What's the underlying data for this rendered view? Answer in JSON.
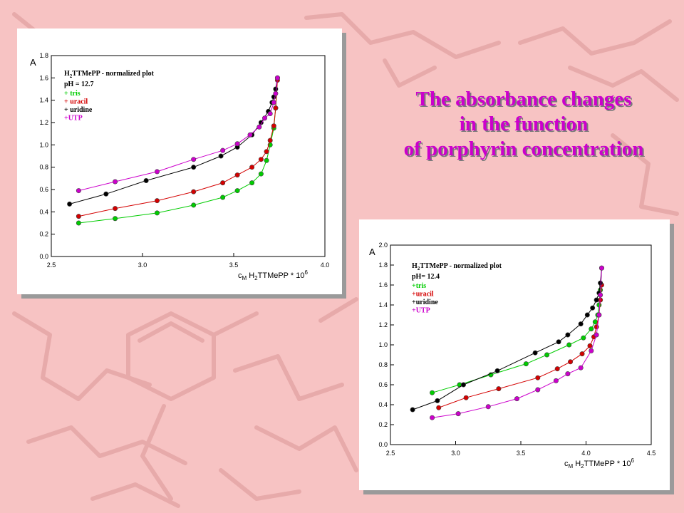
{
  "slide": {
    "title_lines": [
      "The absorbance changes",
      "in the function",
      "of porphyrin concentration"
    ]
  },
  "colors": {
    "background": "#f7c3c3",
    "title": "#cc00cc",
    "tris": "#00cc00",
    "uracil": "#d40000",
    "uridine": "#000000",
    "UTP": "#cc00cc"
  },
  "chart_data": [
    {
      "type": "line",
      "y_axis_label": "A",
      "x_axis_label": {
        "c": "c",
        "sub_M": "M",
        "h": " H",
        "sub_2": "2",
        "rest": "TTMePP * 10",
        "sup": "6"
      },
      "legend_title": {
        "a": "H",
        "b": "2",
        "c": "TTMePP - normalized plot"
      },
      "legend_ph": "pH = 12.7",
      "legend_items": [
        "+ tris",
        "+ uracil",
        "+ uridine",
        "+UTP"
      ],
      "xlim": [
        2.5,
        4.0
      ],
      "ylim": [
        0,
        1.8
      ],
      "x_ticks": [
        "2.5",
        "3.0",
        "3.5",
        "4.0"
      ],
      "y_ticks": [
        "0.0",
        "0.2",
        "0.4",
        "0.6",
        "0.8",
        "1.0",
        "1.2",
        "1.4",
        "1.6",
        "1.8"
      ],
      "series": [
        {
          "name": "tris",
          "color": "#00cc00",
          "x": [
            2.65,
            2.85,
            3.08,
            3.28,
            3.44,
            3.52,
            3.6,
            3.65,
            3.68,
            3.7,
            3.72,
            3.73,
            3.74
          ],
          "y": [
            0.3,
            0.34,
            0.39,
            0.46,
            0.53,
            0.59,
            0.66,
            0.74,
            0.86,
            1.0,
            1.15,
            1.33,
            1.6
          ]
        },
        {
          "name": "uracil",
          "color": "#d40000",
          "x": [
            2.65,
            2.85,
            3.08,
            3.28,
            3.44,
            3.52,
            3.6,
            3.65,
            3.68,
            3.7,
            3.72,
            3.73,
            3.74
          ],
          "y": [
            0.36,
            0.43,
            0.5,
            0.58,
            0.66,
            0.73,
            0.8,
            0.87,
            0.94,
            1.04,
            1.17,
            1.33,
            1.58
          ]
        },
        {
          "name": "uridine",
          "color": "#000000",
          "x": [
            2.6,
            2.8,
            3.02,
            3.28,
            3.43,
            3.52,
            3.6,
            3.65,
            3.69,
            3.71,
            3.72,
            3.73,
            3.74
          ],
          "y": [
            0.47,
            0.56,
            0.68,
            0.8,
            0.9,
            0.98,
            1.09,
            1.2,
            1.3,
            1.38,
            1.43,
            1.5,
            1.6
          ]
        },
        {
          "name": "UTP",
          "color": "#cc00cc",
          "x": [
            2.65,
            2.85,
            3.08,
            3.28,
            3.44,
            3.52,
            3.59,
            3.64,
            3.67,
            3.7,
            3.72,
            3.73,
            3.74
          ],
          "y": [
            0.59,
            0.67,
            0.76,
            0.87,
            0.95,
            1.01,
            1.09,
            1.16,
            1.24,
            1.28,
            1.38,
            1.46,
            1.6
          ]
        }
      ]
    },
    {
      "type": "line",
      "y_axis_label": "A",
      "x_axis_label": {
        "c": "c",
        "sub_M": "M",
        "h": " H",
        "sub_2": "2",
        "rest": "TTMePP * 10",
        "sup": "6"
      },
      "legend_title": {
        "a": "H",
        "b": "2",
        "c": "TTMePP - normalized plot"
      },
      "legend_ph": "pH= 12.4",
      "legend_items": [
        "+tris",
        "+uracil",
        "+uridine",
        "+UTP"
      ],
      "xlim": [
        2.5,
        4.5
      ],
      "ylim": [
        0,
        2.0
      ],
      "x_ticks": [
        "2.5",
        "3.0",
        "3.5",
        "4.0",
        "4.5"
      ],
      "y_ticks": [
        "0.0",
        "0.2",
        "0.4",
        "0.6",
        "0.8",
        "1.0",
        "1.2",
        "1.4",
        "1.6",
        "1.8",
        "2.0"
      ],
      "series": [
        {
          "name": "tris",
          "color": "#00cc00",
          "x": [
            2.82,
            3.03,
            3.27,
            3.54,
            3.7,
            3.87,
            3.98,
            4.04,
            4.07,
            4.09,
            4.1,
            4.11,
            4.12
          ],
          "y": [
            0.52,
            0.6,
            0.7,
            0.81,
            0.9,
            1.0,
            1.07,
            1.16,
            1.23,
            1.3,
            1.4,
            1.55,
            1.77
          ]
        },
        {
          "name": "uracil",
          "color": "#d40000",
          "x": [
            2.87,
            3.08,
            3.33,
            3.63,
            3.78,
            3.88,
            3.97,
            4.03,
            4.06,
            4.08,
            4.1,
            4.11,
            4.12
          ],
          "y": [
            0.37,
            0.47,
            0.56,
            0.67,
            0.76,
            0.83,
            0.91,
            0.99,
            1.08,
            1.18,
            1.3,
            1.45,
            1.6
          ]
        },
        {
          "name": "uridine",
          "color": "#000000",
          "x": [
            2.67,
            2.86,
            3.06,
            3.32,
            3.61,
            3.79,
            3.86,
            3.96,
            4.01,
            4.05,
            4.08,
            4.1,
            4.11,
            4.12
          ],
          "y": [
            0.35,
            0.44,
            0.6,
            0.74,
            0.92,
            1.03,
            1.1,
            1.21,
            1.3,
            1.37,
            1.45,
            1.52,
            1.62,
            1.77
          ]
        },
        {
          "name": "UTP",
          "color": "#cc00cc",
          "x": [
            2.82,
            3.02,
            3.25,
            3.47,
            3.63,
            3.77,
            3.86,
            3.96,
            4.04,
            4.08,
            4.1,
            4.11,
            4.12
          ],
          "y": [
            0.27,
            0.31,
            0.38,
            0.46,
            0.55,
            0.64,
            0.71,
            0.77,
            0.94,
            1.1,
            1.3,
            1.5,
            1.77
          ]
        }
      ]
    }
  ]
}
